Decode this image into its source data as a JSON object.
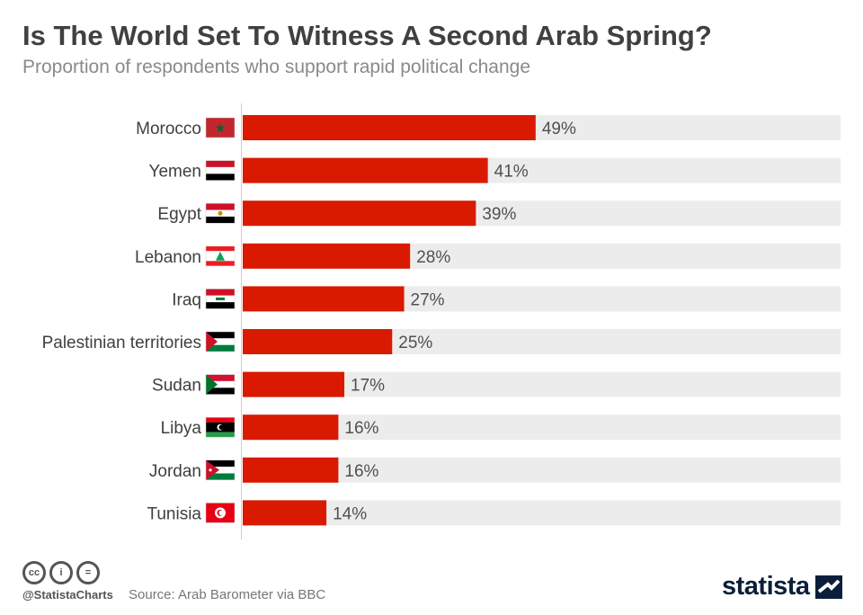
{
  "title": "Is The World Set To Witness A Second Arab Spring?",
  "subtitle": "Proportion of respondents who support rapid political change",
  "chart_data": {
    "type": "bar",
    "orientation": "horizontal",
    "categories": [
      "Morocco",
      "Yemen",
      "Egypt",
      "Lebanon",
      "Iraq",
      "Palestinian territories",
      "Sudan",
      "Libya",
      "Jordan",
      "Tunisia"
    ],
    "values": [
      49,
      41,
      39,
      28,
      27,
      25,
      17,
      16,
      16,
      14
    ],
    "labels": [
      "49%",
      "41%",
      "39%",
      "28%",
      "27%",
      "25%",
      "17%",
      "16%",
      "16%",
      "14%"
    ],
    "xlim": [
      0,
      100
    ],
    "unit": "%",
    "bar_color": "#d91a00",
    "track_color": "#ececec",
    "xlabel": "",
    "ylabel": ""
  },
  "footer": {
    "cc_icons": [
      "cc-icon",
      "attribution-icon",
      "no-derivatives-icon"
    ],
    "cc_symbols": [
      "cc",
      "i",
      "="
    ],
    "handle": "@StatistaCharts",
    "source": "Source: Arab Barometer via BBC",
    "brand": "statista",
    "brand_color": "#0b1f3a"
  }
}
